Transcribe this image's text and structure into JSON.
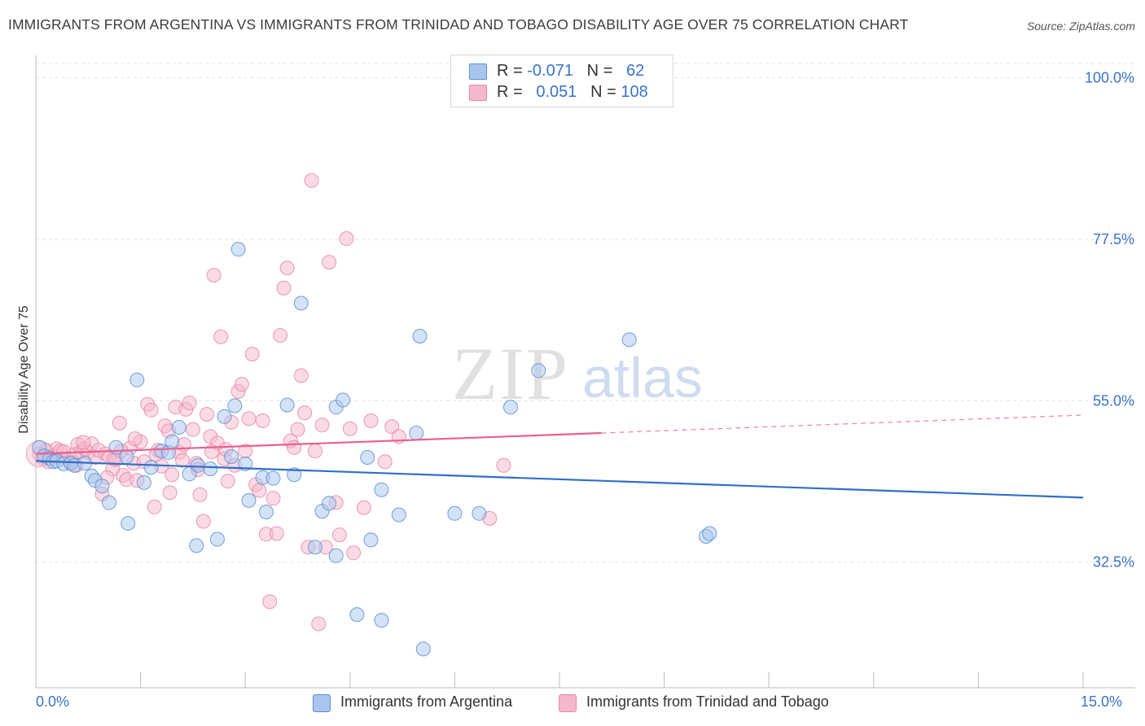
{
  "header": {
    "title": "IMMIGRANTS FROM ARGENTINA VS IMMIGRANTS FROM TRINIDAD AND TOBAGO DISABILITY AGE OVER 75 CORRELATION CHART",
    "source": "Source: ZipAtlas.com"
  },
  "watermark": {
    "zip": "ZIP",
    "atlas": "atlas"
  },
  "legend_top": {
    "rows": [
      {
        "r_label": "R =",
        "r_value": "-0.071",
        "n_label": "N =",
        "n_value": "62",
        "color": "#a9c5ee"
      },
      {
        "r_label": "R =",
        "r_value": "0.051",
        "n_label": "N =",
        "n_value": "108",
        "color": "#f5b8cb"
      }
    ]
  },
  "colors": {
    "blue_fill": "#a9c5ee",
    "blue_stroke": "#5b8fd6",
    "blue_line": "#2f6fc9",
    "pink_fill": "#f5b8cb",
    "pink_stroke": "#e887a6",
    "pink_line": "#e8628e",
    "axis_text": "#3a73c7",
    "grid": "#e3e3e3"
  },
  "chart_data": {
    "type": "scatter",
    "title": "IMMIGRANTS FROM ARGENTINA VS IMMIGRANTS FROM TRINIDAD AND TOBAGO DISABILITY AGE OVER 75 CORRELATION CHART",
    "xlabel": "",
    "ylabel": "Disability Age Over 75",
    "xlim": [
      0,
      15
    ],
    "ylim": [
      15,
      102
    ],
    "x_tick_labels": [
      "0.0%",
      "15.0%"
    ],
    "y_ticks": [
      32.5,
      55.0,
      77.5,
      100.0
    ],
    "y_tick_labels": [
      "32.5%",
      "55.0%",
      "77.5%",
      "100.0%"
    ],
    "grid": true,
    "legend_position": "bottom",
    "series": [
      {
        "name": "Immigrants from Argentina",
        "r": -0.071,
        "n": 62,
        "trend": {
          "x": [
            0,
            15
          ],
          "y": [
            46.6,
            41.5
          ]
        },
        "points": [
          [
            0.05,
            48.5
          ],
          [
            0.12,
            47.3
          ],
          [
            0.2,
            47.0
          ],
          [
            0.25,
            46.5
          ],
          [
            0.3,
            46.6
          ],
          [
            0.4,
            46.2
          ],
          [
            0.5,
            46.3
          ],
          [
            0.55,
            46.0
          ],
          [
            0.7,
            46.3
          ],
          [
            0.8,
            44.5
          ],
          [
            0.85,
            43.9
          ],
          [
            0.95,
            43.1
          ],
          [
            1.05,
            40.8
          ],
          [
            1.15,
            48.5
          ],
          [
            1.3,
            47.2
          ],
          [
            1.32,
            37.9
          ],
          [
            1.45,
            57.9
          ],
          [
            1.55,
            43.6
          ],
          [
            1.65,
            45.7
          ],
          [
            1.8,
            48.0
          ],
          [
            1.9,
            47.8
          ],
          [
            1.95,
            49.3
          ],
          [
            2.05,
            51.3
          ],
          [
            2.2,
            44.8
          ],
          [
            2.3,
            34.8
          ],
          [
            2.32,
            46.0
          ],
          [
            2.5,
            45.5
          ],
          [
            2.6,
            35.7
          ],
          [
            2.7,
            52.8
          ],
          [
            2.8,
            47.2
          ],
          [
            2.85,
            54.3
          ],
          [
            2.9,
            76.1
          ],
          [
            3.0,
            46.2
          ],
          [
            3.05,
            41.1
          ],
          [
            3.25,
            44.3
          ],
          [
            3.3,
            39.5
          ],
          [
            3.4,
            44.2
          ],
          [
            3.6,
            54.4
          ],
          [
            3.7,
            44.7
          ],
          [
            3.8,
            68.6
          ],
          [
            4.0,
            34.6
          ],
          [
            4.1,
            39.6
          ],
          [
            4.2,
            40.7
          ],
          [
            4.3,
            54.1
          ],
          [
            4.4,
            55.1
          ],
          [
            4.3,
            33.4
          ],
          [
            4.6,
            25.2
          ],
          [
            4.75,
            47.1
          ],
          [
            4.8,
            35.6
          ],
          [
            4.95,
            24.4
          ],
          [
            4.95,
            42.6
          ],
          [
            5.2,
            39.1
          ],
          [
            5.45,
            50.5
          ],
          [
            5.5,
            64.0
          ],
          [
            5.55,
            20.4
          ],
          [
            6.0,
            39.3
          ],
          [
            6.35,
            39.3
          ],
          [
            6.8,
            54.1
          ],
          [
            7.2,
            59.2
          ],
          [
            8.5,
            63.5
          ],
          [
            9.6,
            36.1
          ],
          [
            9.65,
            36.5
          ]
        ]
      },
      {
        "name": "Immigrants from Trinidad and Tobago",
        "r": 0.051,
        "n": 108,
        "trend": {
          "x": [
            0,
            8.1
          ],
          "y": [
            47.6,
            50.5
          ]
        },
        "trend_dashed": {
          "x": [
            8.1,
            15
          ],
          "y": [
            50.5,
            53.0
          ]
        },
        "points": [
          [
            0.05,
            47.6
          ],
          [
            0.1,
            47.0
          ],
          [
            0.15,
            48.1
          ],
          [
            0.18,
            46.5
          ],
          [
            0.25,
            47.3
          ],
          [
            0.3,
            48.3
          ],
          [
            0.35,
            48.0
          ],
          [
            0.4,
            47.9
          ],
          [
            0.45,
            46.9
          ],
          [
            0.5,
            46.4
          ],
          [
            0.55,
            47.5
          ],
          [
            0.6,
            48.9
          ],
          [
            0.65,
            47.9
          ],
          [
            0.7,
            48.3
          ],
          [
            0.75,
            47.8
          ],
          [
            0.8,
            49.0
          ],
          [
            0.85,
            47.1
          ],
          [
            0.9,
            48.1
          ],
          [
            0.95,
            42.0
          ],
          [
            1.0,
            47.6
          ],
          [
            1.05,
            47.2
          ],
          [
            1.1,
            45.5
          ],
          [
            1.15,
            46.8
          ],
          [
            1.2,
            51.9
          ],
          [
            1.25,
            44.6
          ],
          [
            1.3,
            44.0
          ],
          [
            1.35,
            48.4
          ],
          [
            1.4,
            46.3
          ],
          [
            1.45,
            43.9
          ],
          [
            1.5,
            49.3
          ],
          [
            1.55,
            46.5
          ],
          [
            1.6,
            54.5
          ],
          [
            1.65,
            53.7
          ],
          [
            1.7,
            40.2
          ],
          [
            1.75,
            48.1
          ],
          [
            1.8,
            45.9
          ],
          [
            1.85,
            51.5
          ],
          [
            1.9,
            50.8
          ],
          [
            1.95,
            44.7
          ],
          [
            2.0,
            54.1
          ],
          [
            2.05,
            47.8
          ],
          [
            2.1,
            46.7
          ],
          [
            2.15,
            53.8
          ],
          [
            2.2,
            54.7
          ],
          [
            2.25,
            51.0
          ],
          [
            2.3,
            46.3
          ],
          [
            2.35,
            41.9
          ],
          [
            2.4,
            38.2
          ],
          [
            2.45,
            53.1
          ],
          [
            2.5,
            50.0
          ],
          [
            2.55,
            72.5
          ],
          [
            2.6,
            49.1
          ],
          [
            2.65,
            63.9
          ],
          [
            2.7,
            46.9
          ],
          [
            2.75,
            43.8
          ],
          [
            2.8,
            52.0
          ],
          [
            2.85,
            46.0
          ],
          [
            2.9,
            56.3
          ],
          [
            2.95,
            57.3
          ],
          [
            3.0,
            48.0
          ],
          [
            3.05,
            52.5
          ],
          [
            3.1,
            61.5
          ],
          [
            3.15,
            43.3
          ],
          [
            3.2,
            42.5
          ],
          [
            3.25,
            52.2
          ],
          [
            3.3,
            36.4
          ],
          [
            3.35,
            27.0
          ],
          [
            3.4,
            41.4
          ],
          [
            3.45,
            36.5
          ],
          [
            3.5,
            64.1
          ],
          [
            3.55,
            70.7
          ],
          [
            3.6,
            73.5
          ],
          [
            3.65,
            49.4
          ],
          [
            3.7,
            48.5
          ],
          [
            3.75,
            51.0
          ],
          [
            3.8,
            58.5
          ],
          [
            3.85,
            53.3
          ],
          [
            3.9,
            34.6
          ],
          [
            3.95,
            85.7
          ],
          [
            4.0,
            48.0
          ],
          [
            4.05,
            23.9
          ],
          [
            4.1,
            51.6
          ],
          [
            4.15,
            34.6
          ],
          [
            4.2,
            74.3
          ],
          [
            4.3,
            40.8
          ],
          [
            4.35,
            36.3
          ],
          [
            4.45,
            77.6
          ],
          [
            4.5,
            51.1
          ],
          [
            4.55,
            33.8
          ],
          [
            4.7,
            40.1
          ],
          [
            4.8,
            52.2
          ],
          [
            5.0,
            46.5
          ],
          [
            5.1,
            51.4
          ],
          [
            5.2,
            50.0
          ],
          [
            6.5,
            38.6
          ],
          [
            6.7,
            46.0
          ],
          [
            0.58,
            46.0
          ],
          [
            0.68,
            49.2
          ],
          [
            1.02,
            44.3
          ],
          [
            1.12,
            46.9
          ],
          [
            1.22,
            48.0
          ],
          [
            1.42,
            49.7
          ],
          [
            1.72,
            47.5
          ],
          [
            1.92,
            42.2
          ],
          [
            2.12,
            48.9
          ],
          [
            2.32,
            45.4
          ],
          [
            2.52,
            47.9
          ],
          [
            2.72,
            48.2
          ]
        ]
      }
    ]
  },
  "legend_bottom": {
    "items": [
      {
        "label": "Immigrants from Argentina",
        "color": "#a9c5ee"
      },
      {
        "label": "Immigrants from Trinidad and Tobago",
        "color": "#f5b8cb"
      }
    ]
  }
}
